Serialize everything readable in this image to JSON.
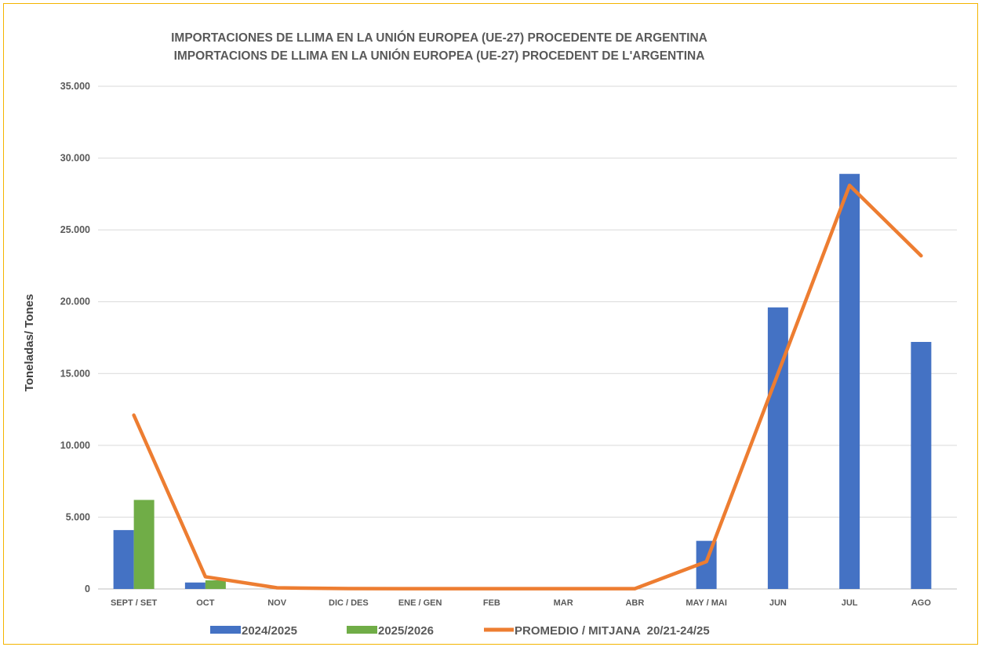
{
  "chart_data": {
    "type": "bar",
    "title": [
      "IMPORTACIONES DE LLIMA EN LA UNIÓN EUROPEA (UE-27) PROCEDENTE DE ARGENTINA",
      "IMPORTACIONS DE LLIMA EN LA UNIÓN EUROPEA (UE-27) PROCEDENT DE L'ARGENTINA"
    ],
    "ylabel": "Toneladas/ Tones",
    "xlabel": "",
    "ylim": [
      0,
      35000
    ],
    "yticks": [
      0,
      5000,
      10000,
      15000,
      20000,
      25000,
      30000,
      35000
    ],
    "ytick_labels": [
      "0",
      "5.000",
      "10.000",
      "15.000",
      "20.000",
      "25.000",
      "30.000",
      "35.000"
    ],
    "grid": true,
    "legend_position": "bottom",
    "categories": [
      "SEPT / SET",
      "OCT",
      "NOV",
      "DIC / DES",
      "ENE / GEN",
      "FEB",
      "MAR",
      "ABR",
      "MAY / MAI",
      "JUN",
      "JUL",
      "AGO"
    ],
    "series": [
      {
        "name": "2024/2025",
        "kind": "bar",
        "color": "#4472C4",
        "values": [
          4100,
          450,
          0,
          0,
          0,
          0,
          0,
          0,
          3350,
          19600,
          28900,
          17200
        ]
      },
      {
        "name": "2025/2026",
        "kind": "bar",
        "color": "#70AD47",
        "values": [
          6200,
          600,
          null,
          null,
          null,
          null,
          null,
          null,
          null,
          null,
          null,
          null
        ]
      },
      {
        "name": "PROMEDIO / MITJANA  20/21-24/25",
        "kind": "line",
        "color": "#ED7D31",
        "values": [
          12100,
          850,
          80,
          30,
          20,
          20,
          20,
          20,
          1900,
          15000,
          28100,
          23200
        ]
      }
    ]
  }
}
